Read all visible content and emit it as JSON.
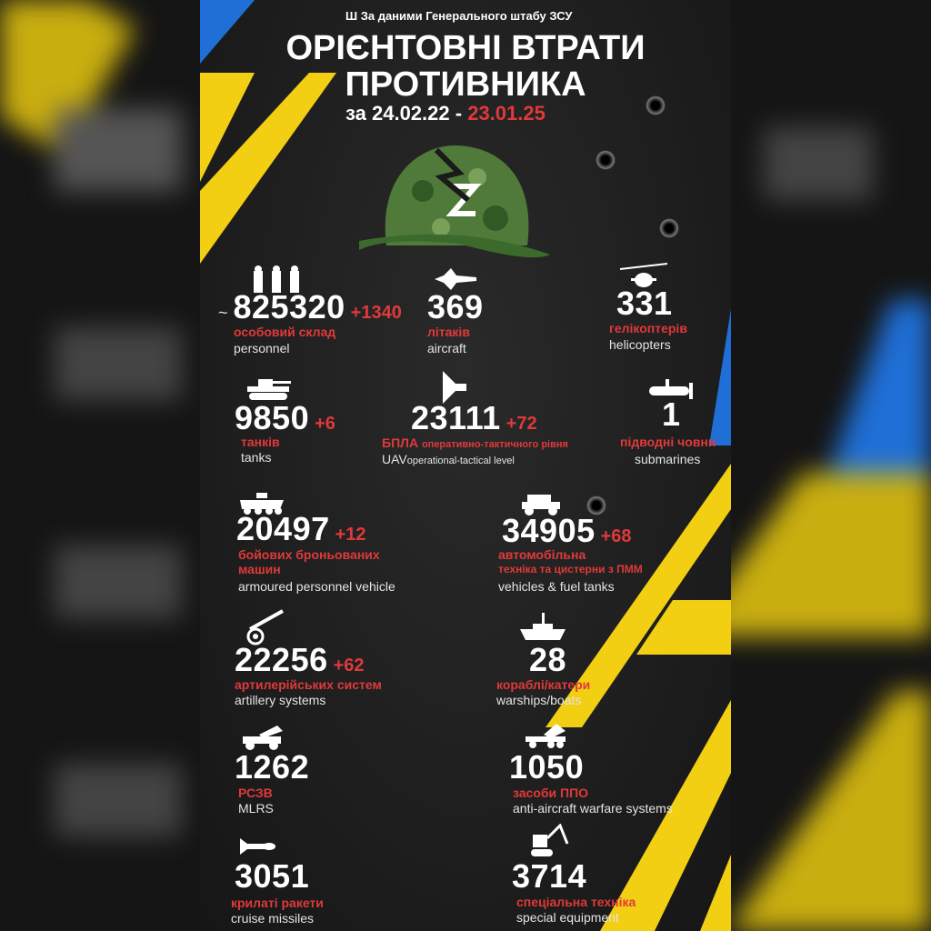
{
  "header": {
    "source": "За даними Генерального штабу ЗСУ",
    "title_line1": "ОРІЄНТОВНІ ВТРАТИ",
    "title_line2": "ПРОТИВНИКА",
    "date_prefix": "за 24.02.22 -",
    "date_end": "23.01.25"
  },
  "colors": {
    "yellow": "#f2cf12",
    "blue": "#1f6fd6",
    "red": "#e0393a",
    "background": "#1c1c1c"
  },
  "stats": {
    "personnel": {
      "approx": "~",
      "value": "825320",
      "delta": "+1340",
      "uk": "особовий склад",
      "en": "personnel",
      "icon": "soldiers-icon"
    },
    "aircraft": {
      "value": "369",
      "uk": "літаків",
      "en": "aircraft",
      "icon": "jet-icon"
    },
    "helicopters": {
      "value": "331",
      "uk": "гелікоптерів",
      "en": "helicopters",
      "icon": "helicopter-icon"
    },
    "tanks": {
      "value": "9850",
      "delta": "+6",
      "uk": "танків",
      "en": "tanks",
      "icon": "tank-icon"
    },
    "uav": {
      "value": "23111",
      "delta": "+72",
      "uk_main": "БПЛА",
      "uk": "оперативно-тактичного рівня",
      "en_main": "UAV",
      "en": "operational-tactical level",
      "icon": "drone-icon"
    },
    "submarines": {
      "value": "1",
      "uk": "підводні човни",
      "en": "submarines",
      "icon": "submarine-icon"
    },
    "apv": {
      "value": "20497",
      "delta": "+12",
      "uk1": "бойових броньованих",
      "uk2": "машин",
      "en": "armoured personnel vehicle",
      "icon": "apc-icon"
    },
    "vehicles": {
      "value": "34905",
      "delta": "+68",
      "uk1": "автомобільна",
      "uk2": "техніка та цистерни з ПММ",
      "en": "vehicles & fuel tanks",
      "icon": "truck-icon"
    },
    "artillery": {
      "value": "22256",
      "delta": "+62",
      "uk": "артилерійських систем",
      "en": "artillery systems",
      "icon": "cannon-icon"
    },
    "warships": {
      "value": "28",
      "uk": "кораблі/катери",
      "en": "warships/boats",
      "icon": "ship-icon"
    },
    "mlrs": {
      "value": "1262",
      "uk": "РСЗВ",
      "en": "MLRS",
      "icon": "rocket-launcher-icon"
    },
    "air_defense": {
      "value": "1050",
      "uk": "засоби ППО",
      "en": "anti-aircraft warfare systems",
      "icon": "air-defense-icon"
    },
    "cruise_missiles": {
      "value": "3051",
      "uk": "крилаті ракети",
      "en": "cruise missiles",
      "icon": "missile-icon"
    },
    "special": {
      "value": "3714",
      "uk": "спеціальна техніка",
      "en": "special equipment",
      "icon": "excavator-icon"
    }
  }
}
